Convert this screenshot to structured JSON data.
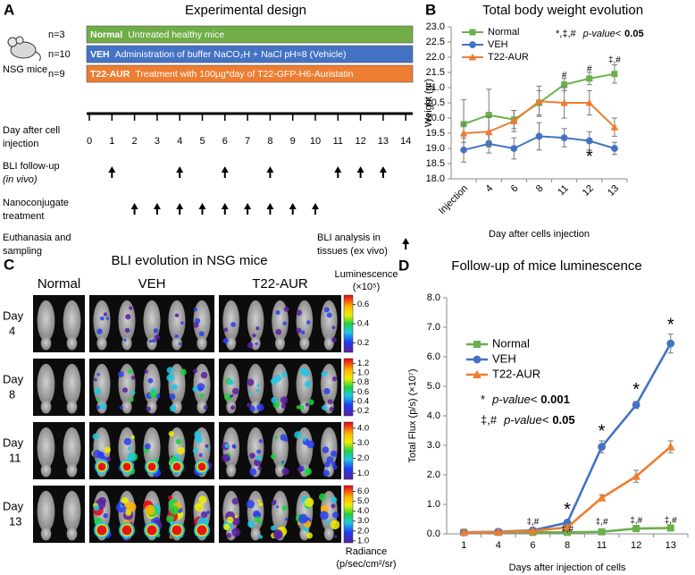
{
  "experimental_design": {
    "panel": "A",
    "title": "Experimental design",
    "mouse_label": "NSG mice",
    "groups": [
      {
        "n": "n=3",
        "name": "Normal",
        "description": "Untreated healthy mice",
        "color": "#70ad47"
      },
      {
        "n": "n=10",
        "name": "VEH",
        "description": "Administration of buffer NaCO₂H + NaCl pH=8 (Vehicle)",
        "color": "#4472c4"
      },
      {
        "n": "n=9",
        "name": "T22-AUR",
        "description": "Treatment with 100µg*day of T22-GFP-H6-Auristatin",
        "color": "#ed7d31"
      }
    ],
    "timeline_label": [
      "Day after cell",
      "injection"
    ],
    "days": [
      0,
      1,
      2,
      3,
      4,
      5,
      6,
      7,
      8,
      9,
      10,
      11,
      12,
      13,
      14
    ],
    "rows": [
      {
        "label": [
          "BLI follow-up",
          "(in vivo)"
        ],
        "days": [
          1,
          4,
          6,
          8,
          11,
          12,
          13
        ]
      },
      {
        "label": [
          "Nanoconjugate",
          "treatment"
        ],
        "days": [
          2,
          3,
          4,
          5,
          6,
          7,
          8,
          9,
          10
        ]
      },
      {
        "label": [
          "Euthanasia and",
          "sampling"
        ],
        "note": [
          "BLI analysis in",
          "tissues (ex vivo)"
        ],
        "days": [
          14
        ]
      }
    ]
  },
  "chart_data": [
    {
      "panel": "B",
      "type": "line",
      "title": "Total body weight evolution",
      "x_label": "Day after cells injection",
      "y_label": "Weight (gr)",
      "categories": [
        "Injection",
        "4",
        "6",
        "8",
        "11",
        "12",
        "13"
      ],
      "ylim": [
        18,
        23
      ],
      "yticks": [
        {
          "value": 18,
          "label": "18.0"
        },
        18.5,
        {
          "value": 19,
          "label": "19.0"
        },
        19.5,
        {
          "value": 20,
          "label": "20.0"
        },
        20.5,
        {
          "value": 21,
          "label": "21.0"
        },
        21.5,
        {
          "value": 22,
          "label": "22.0"
        },
        22.5,
        {
          "value": 23,
          "label": "23.0"
        }
      ],
      "legend_position": "upper left",
      "series": [
        {
          "name": "Normal",
          "color": "#6ab04c",
          "marker": "square",
          "values": [
            19.8,
            20.1,
            19.95,
            20.5,
            21.1,
            21.3,
            21.45
          ],
          "errors": [
            0.8,
            0.85,
            0.3,
            0.4,
            0.2,
            0.2,
            0.3
          ]
        },
        {
          "name": "VEH",
          "color": "#4472c4",
          "marker": "circle",
          "values": [
            18.95,
            19.15,
            19.0,
            19.4,
            19.35,
            19.25,
            19.0
          ],
          "errors": [
            0.4,
            0.3,
            0.35,
            0.45,
            0.3,
            0.3,
            0.2
          ]
        },
        {
          "name": "T22-AUR",
          "color": "#ed7d31",
          "marker": "triangle",
          "values": [
            19.5,
            19.55,
            19.9,
            20.55,
            20.5,
            20.5,
            19.7
          ],
          "errors": [
            0.3,
            0.5,
            0.35,
            0.5,
            0.5,
            0.4,
            0.3
          ]
        }
      ],
      "significance": [
        {
          "symbol": "*,‡,#",
          "text": "p-value<",
          "threshold": "0.05"
        }
      ],
      "annotations": [
        {
          "text": "#",
          "x": "11",
          "y": 21.4
        },
        {
          "text": "#",
          "x": "12",
          "y": 21.6
        },
        {
          "text": "‡,#",
          "x": "13",
          "y": 21.9
        },
        {
          "text": "*",
          "x": "12",
          "y": 18.7
        }
      ]
    },
    {
      "panel": "D",
      "type": "line",
      "title": "Follow-up of mice luminescence",
      "x_label": "Days after injection of cells",
      "y_label": "Total Flux (p/s) (×10⁷)",
      "categories": [
        "1",
        "4",
        "6",
        "8",
        "11",
        "12",
        "13"
      ],
      "ylim": [
        0,
        8
      ],
      "yticks": [
        {
          "value": 0,
          "label": "0.0"
        },
        {
          "value": 1,
          "label": "1.0"
        },
        {
          "value": 2,
          "label": "2.0"
        },
        {
          "value": 3,
          "label": "3.0"
        },
        {
          "value": 4,
          "label": "4.0"
        },
        {
          "value": 5,
          "label": "5.0"
        },
        {
          "value": 6,
          "label": "6.0"
        },
        {
          "value": 7,
          "label": "7.0"
        },
        {
          "value": 8,
          "label": "8.0"
        }
      ],
      "legend_position": "upper left",
      "series": [
        {
          "name": "Normal",
          "color": "#6ab04c",
          "marker": "square",
          "values": [
            0.05,
            0.05,
            0.05,
            0.05,
            0.07,
            0.18,
            0.2
          ],
          "errors": [
            0.02,
            0.02,
            0.02,
            0.02,
            0.03,
            0.06,
            0.07
          ]
        },
        {
          "name": "VEH",
          "color": "#4472c4",
          "marker": "circle",
          "values": [
            0.05,
            0.07,
            0.12,
            0.38,
            2.95,
            4.37,
            6.45
          ],
          "errors": [
            0.02,
            0.03,
            0.04,
            0.08,
            0.2,
            0.12,
            0.32
          ]
        },
        {
          "name": "T22-AUR",
          "color": "#ed7d31",
          "marker": "triangle",
          "values": [
            0.05,
            0.06,
            0.1,
            0.22,
            1.22,
            1.95,
            2.95
          ],
          "errors": [
            0.02,
            0.02,
            0.03,
            0.05,
            0.1,
            0.2,
            0.2
          ]
        }
      ],
      "significance": [
        {
          "symbol": "*",
          "text": "p-value<",
          "threshold": "0.001"
        },
        {
          "symbol": "‡,#",
          "text": "p-value<",
          "threshold": "0.05"
        }
      ],
      "annotations": [
        {
          "text": "*",
          "x": "8",
          "y": 0.8
        },
        {
          "text": "*",
          "x": "11",
          "y": 3.45
        },
        {
          "text": "*",
          "x": "12",
          "y": 4.85
        },
        {
          "text": "*",
          "x": "13",
          "y": 7.05
        },
        {
          "text": "‡,#",
          "x": "6",
          "y": 0.4
        },
        {
          "text": "‡,#",
          "x": "8",
          "y": 0.15
        },
        {
          "text": "‡,#",
          "x": "11",
          "y": 0.4
        },
        {
          "text": "‡,#",
          "x": "12",
          "y": 0.45
        },
        {
          "text": "‡,#",
          "x": "13",
          "y": 0.45
        }
      ]
    }
  ],
  "bli_images": {
    "panel": "C",
    "title": "BLI evolution in NSG mice",
    "columns": [
      "Normal",
      "VEH",
      "T22-AUR"
    ],
    "scale_title": [
      "Luminescence",
      "(×10⁵)"
    ],
    "scale_footer": [
      "Radiance",
      "(p/sec/cm²/sr)"
    ],
    "rows": [
      {
        "label": "Day",
        "day": "4",
        "scale_lim": [
          0.1,
          0.7
        ],
        "scale_ticks": [
          0.6,
          0.4,
          0.2
        ]
      },
      {
        "label": "Day",
        "day": "8",
        "scale_lim": [
          0.1,
          1.3
        ],
        "scale_ticks": [
          1.2,
          {
            "value": 1,
            "label": "1.0"
          },
          0.8,
          0.6,
          0.4,
          0.2
        ]
      },
      {
        "label": "Day",
        "day": "11",
        "scale_lim": [
          0.6,
          4.4
        ],
        "scale_ticks": [
          {
            "value": 4,
            "label": "4.0"
          },
          {
            "value": 3,
            "label": "3.0"
          },
          {
            "value": 2,
            "label": "2.0"
          },
          {
            "value": 1,
            "label": "1.0"
          }
        ]
      },
      {
        "label": "Day",
        "day": "13",
        "scale_lim": [
          0.8,
          6.6
        ],
        "scale_ticks": [
          {
            "value": 6,
            "label": "6.0"
          },
          {
            "value": 5,
            "label": "5.0"
          },
          {
            "value": 4,
            "label": "4.0"
          },
          {
            "value": 3,
            "label": "3.0"
          },
          {
            "value": 2,
            "label": "2.0"
          },
          {
            "value": 1,
            "label": "1.0"
          }
        ]
      }
    ]
  }
}
